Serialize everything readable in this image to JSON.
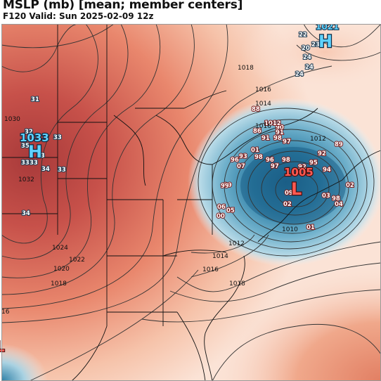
{
  "header": {
    "title": "MSLP (mb) [mean; member centers]",
    "valid": "F120 Valid: Sun 2025-02-09 12z"
  },
  "colors": {
    "high_fill": "#b8433f",
    "low_fill": "#1e6f95",
    "isobar": "#333333",
    "high_center": "#5fd3ff",
    "low_center": "#ff5a52"
  },
  "centers": [
    {
      "type": "H",
      "value": "1033",
      "label": "H"
    },
    {
      "type": "L",
      "value": "1005",
      "label": "L"
    },
    {
      "type": "H",
      "value": "1021",
      "label": "H"
    },
    {
      "type": "L",
      "value": "",
      "label": "L"
    }
  ],
  "isobar_labels": [
    "1030",
    "1032",
    "1024",
    "1022",
    "1020",
    "1018",
    "1016",
    "1018",
    "1016",
    "1014",
    "1012",
    "1010",
    "1012",
    "1014",
    "1016",
    "1018",
    "16"
  ],
  "member_labels_high": [
    "31",
    "32",
    "35",
    "33",
    "34",
    "33",
    "33",
    "33",
    "34",
    "33",
    "22",
    "20",
    "23",
    "24",
    "24",
    "24"
  ],
  "member_labels_low": [
    "88",
    "86",
    "90",
    "91",
    "98",
    "93",
    "96",
    "01",
    "07",
    "98",
    "97",
    "96",
    "99",
    "1012",
    "92",
    "89",
    "94",
    "02",
    "03",
    "98",
    "04",
    "01",
    "09",
    "02",
    "06",
    "05",
    "00",
    "99",
    "91",
    "92",
    "95",
    "97",
    "98"
  ]
}
